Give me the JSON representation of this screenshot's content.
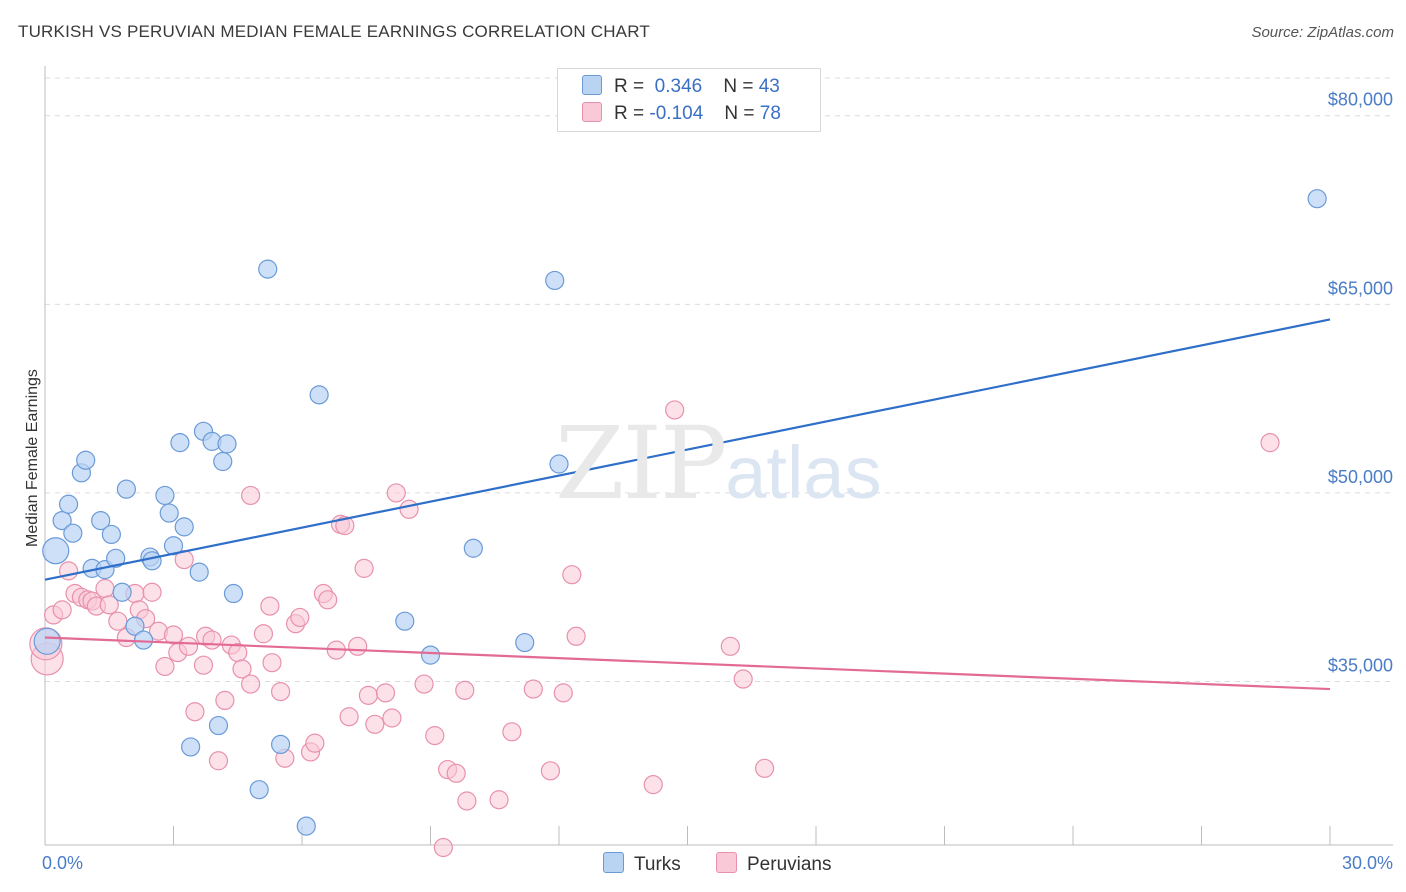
{
  "header": {
    "title": "TURKISH VS PERUVIAN MEDIAN FEMALE EARNINGS CORRELATION CHART",
    "source": "Source: ZipAtlas.com"
  },
  "watermark": {
    "zip": "ZIP",
    "atlas": "atlas"
  },
  "legend": {
    "turks": {
      "r_label": "R =",
      "r_value": "0.346",
      "n_label": "N =",
      "n_value": "43"
    },
    "peruvians": {
      "r_label": "R =",
      "r_value": "-0.104",
      "n_label": "N =",
      "n_value": "78"
    }
  },
  "bottom_legend": {
    "turks": "Turks",
    "peruvians": "Peruvians"
  },
  "colors": {
    "turks_fill": "#b9d3f3",
    "turks_stroke": "#6a9ad8",
    "turks_line": "#2f6fc9",
    "peru_fill": "#f9c9d7",
    "peru_stroke": "#e891ad",
    "peru_line": "#e26a95",
    "grid": "#dcdcdc",
    "tick_text": "#4a7cc7"
  },
  "chart_data": {
    "type": "scatter",
    "title": "TURKISH VS PERUVIAN MEDIAN FEMALE EARNINGS CORRELATION CHART",
    "ylabel": "Median Female Earnings",
    "xlim": [
      0,
      30
    ],
    "ylim": [
      22000,
      83000
    ],
    "x_tick_labels": [
      {
        "value": 0,
        "label": "0.0%"
      },
      {
        "value": 30,
        "label": "30.0%"
      }
    ],
    "y_ticks": [
      {
        "value": 35000,
        "label": "$35,000"
      },
      {
        "value": 50000,
        "label": "$50,000"
      },
      {
        "value": 65000,
        "label": "$65,000"
      },
      {
        "value": 80000,
        "label": "$80,000"
      }
    ],
    "grid": true,
    "legend_position": "top-center",
    "series": [
      {
        "name": "Turks",
        "r": 0.346,
        "n": 43,
        "trend": [
          [
            0,
            43100
          ],
          [
            30,
            63800
          ]
        ],
        "points": [
          [
            0.25,
            45400
          ],
          [
            0.4,
            47800
          ],
          [
            0.55,
            49100
          ],
          [
            0.65,
            46800
          ],
          [
            0.85,
            51600
          ],
          [
            0.95,
            52600
          ],
          [
            1.1,
            44000
          ],
          [
            1.3,
            47800
          ],
          [
            1.4,
            43900
          ],
          [
            1.55,
            46700
          ],
          [
            1.65,
            44800
          ],
          [
            1.8,
            42100
          ],
          [
            1.9,
            50300
          ],
          [
            2.1,
            39400
          ],
          [
            2.3,
            38300
          ],
          [
            2.45,
            44900
          ],
          [
            2.5,
            44600
          ],
          [
            2.8,
            49800
          ],
          [
            2.9,
            48400
          ],
          [
            3.0,
            45800
          ],
          [
            3.15,
            54000
          ],
          [
            3.25,
            47300
          ],
          [
            3.4,
            29800
          ],
          [
            3.6,
            43700
          ],
          [
            3.7,
            54900
          ],
          [
            3.9,
            54100
          ],
          [
            4.05,
            31500
          ],
          [
            4.15,
            52500
          ],
          [
            4.25,
            53900
          ],
          [
            4.4,
            42000
          ],
          [
            5.0,
            26400
          ],
          [
            5.2,
            67800
          ],
          [
            5.5,
            30000
          ],
          [
            6.1,
            23500
          ],
          [
            6.4,
            57800
          ],
          [
            8.4,
            39800
          ],
          [
            9.0,
            37100
          ],
          [
            10.0,
            45600
          ],
          [
            11.2,
            38100
          ],
          [
            12.0,
            52300
          ],
          [
            11.9,
            66900
          ],
          [
            29.7,
            73400
          ],
          [
            0.05,
            38200
          ]
        ]
      },
      {
        "name": "Peruvians",
        "r": -0.104,
        "n": 78,
        "trend": [
          [
            0,
            38500
          ],
          [
            30,
            34400
          ]
        ],
        "points": [
          [
            0.05,
            36800
          ],
          [
            0.2,
            40300
          ],
          [
            0.4,
            40700
          ],
          [
            0.55,
            43800
          ],
          [
            0.7,
            42000
          ],
          [
            0.85,
            41700
          ],
          [
            1.0,
            41500
          ],
          [
            1.1,
            41400
          ],
          [
            1.2,
            41000
          ],
          [
            1.4,
            42400
          ],
          [
            1.5,
            41100
          ],
          [
            1.7,
            39800
          ],
          [
            1.9,
            38500
          ],
          [
            2.1,
            42000
          ],
          [
            2.2,
            40700
          ],
          [
            2.35,
            40000
          ],
          [
            2.5,
            42100
          ],
          [
            2.65,
            39000
          ],
          [
            2.8,
            36200
          ],
          [
            3.0,
            38700
          ],
          [
            3.1,
            37300
          ],
          [
            3.25,
            44700
          ],
          [
            3.35,
            37800
          ],
          [
            3.5,
            32600
          ],
          [
            3.7,
            36300
          ],
          [
            3.75,
            38600
          ],
          [
            3.9,
            38300
          ],
          [
            4.05,
            28700
          ],
          [
            4.2,
            33500
          ],
          [
            4.35,
            37900
          ],
          [
            4.5,
            37300
          ],
          [
            4.6,
            36000
          ],
          [
            4.8,
            34800
          ],
          [
            4.8,
            49800
          ],
          [
            5.1,
            38800
          ],
          [
            5.25,
            41000
          ],
          [
            5.3,
            36500
          ],
          [
            5.5,
            34200
          ],
          [
            5.6,
            28900
          ],
          [
            5.85,
            39600
          ],
          [
            5.95,
            40100
          ],
          [
            6.2,
            29400
          ],
          [
            6.3,
            30100
          ],
          [
            6.5,
            42000
          ],
          [
            6.6,
            41500
          ],
          [
            6.8,
            37500
          ],
          [
            6.9,
            47500
          ],
          [
            7.0,
            47400
          ],
          [
            7.1,
            32200
          ],
          [
            7.3,
            37800
          ],
          [
            7.45,
            44000
          ],
          [
            7.55,
            33900
          ],
          [
            7.7,
            31600
          ],
          [
            7.95,
            34100
          ],
          [
            8.1,
            32100
          ],
          [
            8.2,
            50000
          ],
          [
            8.5,
            48700
          ],
          [
            8.85,
            34800
          ],
          [
            9.1,
            30700
          ],
          [
            9.3,
            21800
          ],
          [
            9.4,
            28000
          ],
          [
            9.6,
            27700
          ],
          [
            9.8,
            34300
          ],
          [
            9.85,
            25500
          ],
          [
            10.6,
            25600
          ],
          [
            10.9,
            31000
          ],
          [
            11.4,
            34400
          ],
          [
            11.8,
            27900
          ],
          [
            12.1,
            34100
          ],
          [
            12.3,
            43500
          ],
          [
            12.4,
            38600
          ],
          [
            14.2,
            26800
          ],
          [
            14.7,
            56600
          ],
          [
            16.0,
            37800
          ],
          [
            16.3,
            35200
          ],
          [
            16.8,
            28100
          ],
          [
            28.6,
            54000
          ],
          [
            0.02,
            38000
          ]
        ]
      }
    ]
  }
}
